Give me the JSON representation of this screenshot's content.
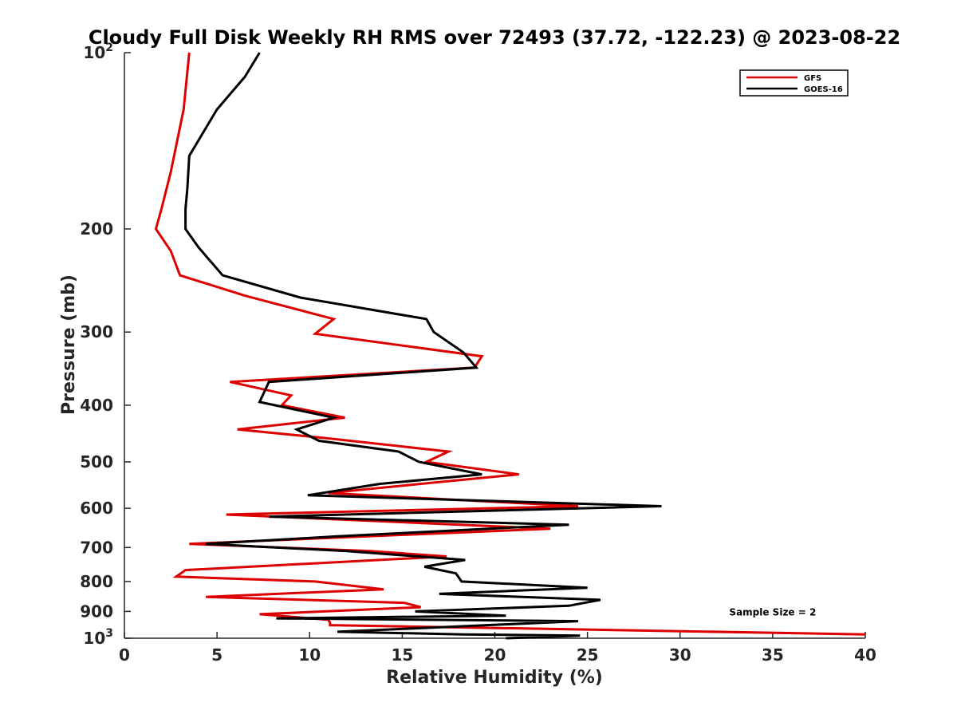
{
  "chart_data": {
    "type": "line",
    "title": "Cloudy Full Disk Weekly RH RMS over 72493 (37.72, -122.23) @ 2023-08-22",
    "xlabel": "Relative Humidity (%)",
    "ylabel": "Pressure (mb)",
    "xlim": [
      0,
      40
    ],
    "ylim": [
      100,
      1000
    ],
    "yscale": "log",
    "y_reversed": true,
    "grid": false,
    "legend_position": "top-right",
    "xticks": [
      0,
      5,
      10,
      15,
      20,
      25,
      30,
      35,
      40
    ],
    "yticks": [
      {
        "value": 100,
        "base": "10",
        "exp": "2"
      },
      {
        "value": 200,
        "label": "200"
      },
      {
        "value": 300,
        "label": "300"
      },
      {
        "value": 400,
        "label": "400"
      },
      {
        "value": 500,
        "label": "500"
      },
      {
        "value": 600,
        "label": "600"
      },
      {
        "value": 700,
        "label": "700"
      },
      {
        "value": 800,
        "label": "800"
      },
      {
        "value": 900,
        "label": "900"
      },
      {
        "value": 1000,
        "base": "10",
        "exp": "3"
      }
    ],
    "series": [
      {
        "name": "GFS",
        "color": "#dd0000",
        "points": [
          [
            3.5,
            100
          ],
          [
            3.2,
            125
          ],
          [
            2.5,
            160
          ],
          [
            2.0,
            185
          ],
          [
            1.7,
            200
          ],
          [
            2.5,
            218
          ],
          [
            3.0,
            240
          ],
          [
            6.5,
            260
          ],
          [
            11.3,
            285
          ],
          [
            10.3,
            302
          ],
          [
            19.3,
            330
          ],
          [
            18.9,
            345
          ],
          [
            5.7,
            365
          ],
          [
            9.0,
            385
          ],
          [
            8.5,
            400
          ],
          [
            11.9,
            420
          ],
          [
            6.1,
            440
          ],
          [
            10.8,
            455
          ],
          [
            17.5,
            480
          ],
          [
            16.3,
            500
          ],
          [
            21.3,
            525
          ],
          [
            16.0,
            545
          ],
          [
            11.0,
            565
          ],
          [
            24.5,
            595
          ],
          [
            5.5,
            615
          ],
          [
            23.0,
            650
          ],
          [
            3.5,
            690
          ],
          [
            13.3,
            710
          ],
          [
            17.4,
            725
          ],
          [
            3.3,
            765
          ],
          [
            2.8,
            785
          ],
          [
            10.3,
            800
          ],
          [
            14.0,
            825
          ],
          [
            4.4,
            850
          ],
          [
            15.1,
            870
          ],
          [
            16.0,
            885
          ],
          [
            7.3,
            910
          ],
          [
            11.0,
            930
          ],
          [
            11.1,
            940
          ],
          [
            11.1,
            950
          ],
          [
            40.0,
            985
          ]
        ]
      },
      {
        "name": "GOES-16",
        "color": "#000000",
        "points": [
          [
            7.3,
            100
          ],
          [
            6.5,
            110
          ],
          [
            5.0,
            125
          ],
          [
            3.5,
            150
          ],
          [
            3.4,
            170
          ],
          [
            3.3,
            185
          ],
          [
            3.3,
            200
          ],
          [
            4.0,
            215
          ],
          [
            5.3,
            240
          ],
          [
            9.5,
            262
          ],
          [
            16.3,
            285
          ],
          [
            16.7,
            300
          ],
          [
            18.3,
            325
          ],
          [
            19.0,
            345
          ],
          [
            7.8,
            365
          ],
          [
            7.3,
            395
          ],
          [
            11.3,
            420
          ],
          [
            9.3,
            440
          ],
          [
            10.5,
            460
          ],
          [
            14.8,
            480
          ],
          [
            15.9,
            500
          ],
          [
            19.3,
            525
          ],
          [
            13.8,
            545
          ],
          [
            9.9,
            570
          ],
          [
            29.0,
            595
          ],
          [
            7.8,
            620
          ],
          [
            24.0,
            640
          ],
          [
            11.5,
            670
          ],
          [
            4.4,
            690
          ],
          [
            12.0,
            710
          ],
          [
            18.4,
            735
          ],
          [
            16.2,
            755
          ],
          [
            17.9,
            775
          ],
          [
            18.2,
            800
          ],
          [
            25.0,
            820
          ],
          [
            17.0,
            840
          ],
          [
            25.7,
            860
          ],
          [
            24.0,
            880
          ],
          [
            15.7,
            900
          ],
          [
            20.6,
            915
          ],
          [
            8.2,
            925
          ],
          [
            24.5,
            935
          ],
          [
            18.0,
            955
          ],
          [
            11.5,
            975
          ],
          [
            18.3,
            985
          ],
          [
            24.6,
            990
          ],
          [
            20.6,
            1000
          ]
        ]
      }
    ],
    "annotations": [
      {
        "text": "Sample Size = 2",
        "x": 35.0,
        "y": 900
      }
    ]
  }
}
